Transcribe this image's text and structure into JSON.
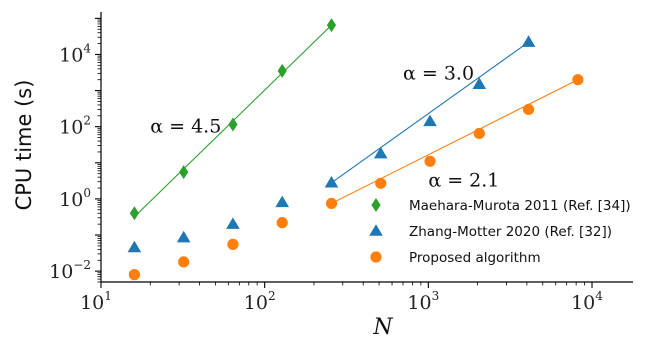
{
  "chart_data": {
    "type": "scatter",
    "xscale": "log",
    "yscale": "log",
    "xlabel": "N",
    "ylabel": "CPU time (s)",
    "xlim": [
      10,
      17800
    ],
    "ylim": [
      0.005,
      150000
    ],
    "x_ticks": [
      {
        "base": "10",
        "exp": "1",
        "value": 10
      },
      {
        "base": "10",
        "exp": "2",
        "value": 100
      },
      {
        "base": "10",
        "exp": "3",
        "value": 1000
      },
      {
        "base": "10",
        "exp": "4",
        "value": 10000
      }
    ],
    "y_ticks": [
      {
        "base": "10",
        "exp": "−2",
        "value": 0.01
      },
      {
        "base": "10",
        "exp": "0",
        "value": 1
      },
      {
        "base": "10",
        "exp": "2",
        "value": 100
      },
      {
        "base": "10",
        "exp": "4",
        "value": 10000
      }
    ],
    "grid": false,
    "legend_position": "lower-right",
    "series": [
      {
        "name": "Maehara-Murota 2011 (Ref. [34])",
        "color": "#2ca02c",
        "marker": "diamond",
        "x": [
          16,
          32,
          64,
          128,
          256
        ],
        "y": [
          0.4,
          5.5,
          115,
          3500,
          65000
        ],
        "fit": {
          "x": [
            16,
            256
          ],
          "y": [
            0.32,
            65000
          ]
        }
      },
      {
        "name": "Zhang-Motter 2020 (Ref. [32])",
        "color": "#1f77b4",
        "marker": "triangle",
        "x": [
          16,
          32,
          64,
          128,
          256,
          512,
          1024,
          2048,
          4096
        ],
        "y": [
          0.045,
          0.085,
          0.2,
          0.8,
          2.8,
          18,
          140,
          1500,
          22000
        ],
        "fit": {
          "x": [
            256,
            4096
          ],
          "y": [
            2.8,
            22000
          ]
        }
      },
      {
        "name": "Proposed algorithm",
        "color": "#ff7f0e",
        "marker": "circle",
        "x": [
          16,
          32,
          64,
          128,
          256,
          512,
          1024,
          2048,
          4096,
          8192
        ],
        "y": [
          0.008,
          0.018,
          0.055,
          0.22,
          0.75,
          2.7,
          11,
          65,
          300,
          2000
        ],
        "fit": {
          "x": [
            256,
            8192
          ],
          "y": [
            0.75,
            2000
          ]
        }
      }
    ],
    "annotations": [
      {
        "text": "α = 4.5",
        "x": 20,
        "y": 70
      },
      {
        "text": "α = 3.0",
        "x": 700,
        "y": 2000
      },
      {
        "text": "α = 2.1",
        "x": 1000,
        "y": 2.2
      }
    ]
  }
}
